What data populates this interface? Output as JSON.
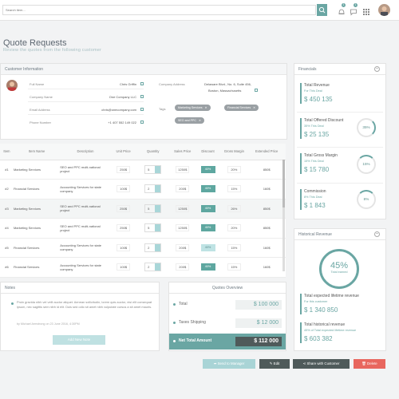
{
  "topbar": {
    "search_placeholder": "Search item...",
    "notif_count_1": "1",
    "notif_count_2": "1"
  },
  "page": {
    "title": "Quote Requests",
    "subtitle": "Review the quotes from the following customer"
  },
  "customer": {
    "header": "Customer Information",
    "full_name_label": "Full Name",
    "full_name": "Chris Griffin",
    "company_name_label": "Company Name",
    "company_name": "One Company LLC",
    "email_label": "Email Address",
    "email": "chris@onecompany.com",
    "phone_label": "Phone Number",
    "phone": "+1 407 552 149 022",
    "address_label": "Company Address",
    "address_line1": "Delaware Blvd., No. 6, Suite 456,",
    "address_line2": "Boston, Massachusetts",
    "tags_label": "Tags",
    "tags": [
      "Marketing Services",
      "Financial Services",
      "SEO and PPC"
    ]
  },
  "table": {
    "headers": [
      "Item",
      "Item Name",
      "Description",
      "Unit Price",
      "Quantity",
      "Sales Price",
      "Discount",
      "Gross Margin",
      "Extended Price"
    ],
    "rows": [
      {
        "item": "#1",
        "name": "Marketing Services",
        "desc": "SEO and PPC multi-national project",
        "unit": "250$",
        "qty": "5",
        "sales": "1250$",
        "discount": "40%",
        "margin": "20%",
        "ext": "850$"
      },
      {
        "item": "#2",
        "name": "Financial Services",
        "desc": "Accounting Services for state company",
        "unit": "100$",
        "qty": "2",
        "sales": "200$",
        "discount": "40%",
        "margin": "15%",
        "ext": "160$"
      },
      {
        "item": "#3",
        "name": "Marketing Services",
        "desc": "SEO and PPC multi-national project",
        "unit": "250$",
        "qty": "5",
        "sales": "1250$",
        "discount": "40%",
        "margin": "26%",
        "ext": "850$"
      },
      {
        "item": "#4",
        "name": "Marketing Services",
        "desc": "SEO and PPC multi-national project",
        "unit": "250$",
        "qty": "5",
        "sales": "1250$",
        "discount": "40%",
        "margin": "20%",
        "ext": "850$"
      },
      {
        "item": "#5",
        "name": "Financial Services",
        "desc": "Accounting Services for state company",
        "unit": "100$",
        "qty": "2",
        "sales": "200$",
        "discount": "40%",
        "margin": "15%",
        "ext": "160$"
      },
      {
        "item": "#6",
        "name": "Financial Services",
        "desc": "Accounting Services for state company",
        "unit": "100$",
        "qty": "2",
        "sales": "200$",
        "discount": "40%",
        "margin": "15%",
        "ext": "160$"
      }
    ]
  },
  "notes": {
    "header": "Notes",
    "text": "Proin gravida nibh vel velit auctor aliquet. Aenean sollicitudin, lorem quis auctor, nisi elit consequat ipsum, nec sagittis sem nibh id elit. Duis sed odio sit amet nibh vulputate cursus a sit amet mauris.",
    "meta": "by Michael Armstrong on 23 June 2016, 4:30PM",
    "add_button": "Add New Note"
  },
  "overview": {
    "header": "Quotes Overview",
    "total_label": "Total",
    "total": "$ 100 000",
    "shipping_label": "Taxes Shipping",
    "shipping": "$ 12 000",
    "net_label": "Net Total Amount",
    "net": "$ 112 000"
  },
  "financials": {
    "header": "Financials",
    "items": [
      {
        "title": "Total Revenue",
        "sub": "For This Deal",
        "value": "$ 450 135",
        "pct": ""
      },
      {
        "title": "Total Offered Discount",
        "sub": "35% This Deal",
        "value": "$ 25 135",
        "pct": "35%"
      },
      {
        "title": "Total Gross Margin",
        "sub": "15% This Deal",
        "value": "$ 15 780",
        "pct": "15%"
      },
      {
        "title": "Commission",
        "sub": "8% This Deal",
        "value": "$ 1 843",
        "pct": "8%"
      }
    ]
  },
  "historical": {
    "header": "Historical Revenue",
    "pct": "45%",
    "pct_label": "Total earned",
    "expected_title": "Total expected lifetime revenue",
    "expected_sub": "For this customer",
    "expected_value": "$ 1 340 850",
    "hist_title": "Total historical revenue",
    "hist_sub": "45% of Total expected lifetime revenue",
    "hist_value": "$ 603 382"
  },
  "actions": {
    "send": "Send to Manager",
    "edit": "Edit",
    "share": "Share with Customer",
    "delete": "Delete"
  },
  "colors": {
    "accent": "#6aa6a3",
    "delete": "#e8665e",
    "dark": "#4f5a5a"
  }
}
